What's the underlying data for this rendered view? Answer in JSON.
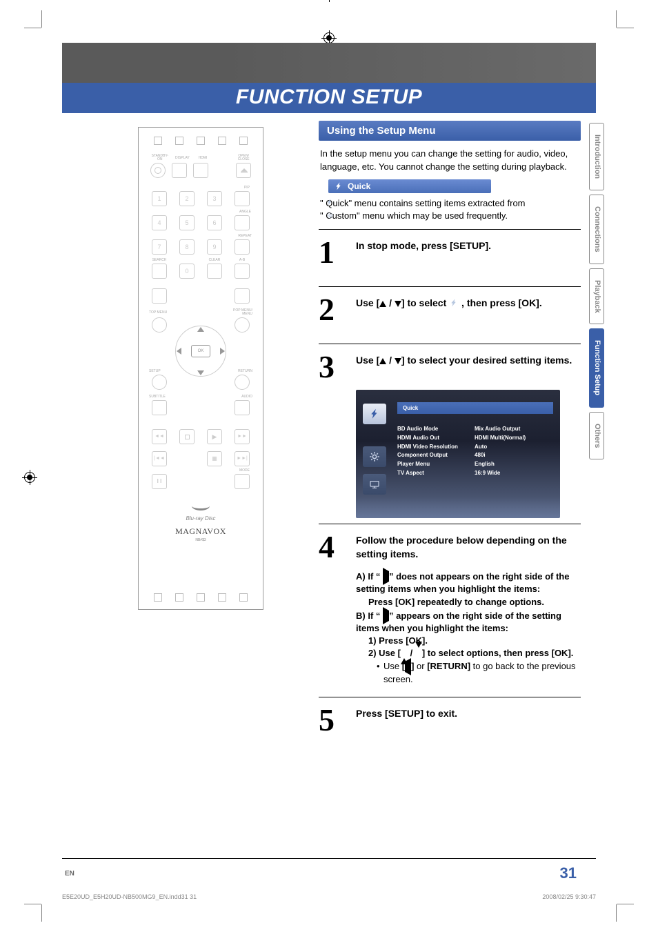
{
  "title": "FUNCTION SETUP",
  "section": {
    "header": "Using the Setup Menu",
    "intro": "In the setup menu you can change the setting for audio, video, language, etc. You cannot change the setting during playback.",
    "quick_label": "Quick",
    "quick_desc_1": "\"      Quick\" menu contains setting items extracted from",
    "quick_desc_2": "\"      Custom\" menu which may be used frequently."
  },
  "steps": [
    {
      "num": "1",
      "text": "In stop mode, press [SETUP]."
    },
    {
      "num": "2",
      "text_pre": "Use [",
      "text_mid": " / ",
      "text_post": "] to select       , then press [OK]."
    },
    {
      "num": "3",
      "text_pre": "Use [",
      "text_mid": " / ",
      "text_post": "] to select your desired setting items."
    },
    {
      "num": "4",
      "text": "Follow the procedure below depending on the setting items."
    },
    {
      "num": "5",
      "text": "Press [SETUP] to exit."
    }
  ],
  "screenshot": {
    "tab_label": "Quick",
    "items": [
      {
        "label": "BD Audio Mode",
        "value": "Mix Audio Output"
      },
      {
        "label": "HDMI Audio Out",
        "value": "HDMI Multi(Normal)"
      },
      {
        "label": "HDMI Video Resolution",
        "value": "Auto"
      },
      {
        "label": "Component Output",
        "value": "480i"
      },
      {
        "label": "Player Menu",
        "value": "English"
      },
      {
        "label": "TV Aspect",
        "value": "16:9 Wide"
      }
    ]
  },
  "step4": {
    "a_head": "A) If \"       \" does not appears on the right side of the setting items when you highlight the items:",
    "a_body": "Press [OK] repeatedly to change options.",
    "b_head": "B) If \"       \" appears on the right side of the setting items when you highlight the items:",
    "b1": "1)  Press [OK].",
    "b2_pre": "2)  Use [",
    "b2_mid": " / ",
    "b2_post": "] to select options, then press [OK].",
    "b_note_pre": "Use ",
    "b_note_key": "[    ]",
    "b_note_mid": " or ",
    "b_note_key2": "[RETURN]",
    "b_note_post": " to go back to the previous screen."
  },
  "tabs": [
    "Introduction",
    "Connections",
    "Playback",
    "Function Setup",
    "Others"
  ],
  "remote": {
    "row1_labels": [
      "STANDBY-ON",
      "DISPLAY",
      "HDMI",
      "",
      "OPEN/\nCLOSE"
    ],
    "brand_bd": "Blu-ray Disc",
    "brand": "MAGNAVOX",
    "model": "NB#$3",
    "numpad_labels": {
      "pip": "PIP",
      "angle": "ANGLE",
      "repeat": "REPEAT",
      "search": "SEARCH",
      "clear": "CLEAR",
      "ab": "A-B"
    },
    "menu_labels": {
      "top": "TOP MENU",
      "pop": "POP MENU/\nMENU",
      "setup": "SETUP",
      "return": "RETURN",
      "subtitle": "SUBTITLE",
      "audio": "AUDIO",
      "mode": "MODE"
    },
    "ok": "OK"
  },
  "footer": {
    "en": "EN",
    "page": "31"
  },
  "print_footer": {
    "file": "E5E20UD_E5H20UD-NB500MG9_EN.indd31   31",
    "date": "2008/02/25   9:30:47"
  },
  "colors": {
    "accent": "#3a5fa8",
    "header_gray": "#5a5a5a"
  }
}
